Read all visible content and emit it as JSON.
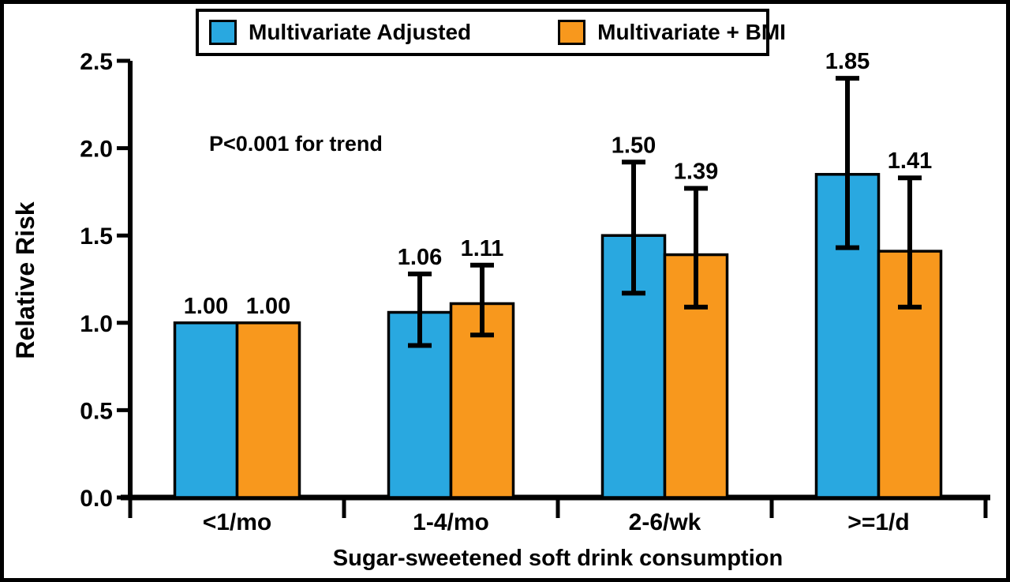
{
  "figure": {
    "background": "#ffffff",
    "border_color": "#000000",
    "text_color": "#000000"
  },
  "legend": {
    "items": [
      {
        "label": "Multivariate Adjusted",
        "color": "#29A8E0",
        "swatch_icon": "blue-square-swatch"
      },
      {
        "label": "Multivariate + BMI",
        "color": "#F8981D",
        "swatch_icon": "orange-square-swatch"
      }
    ]
  },
  "chart_data": {
    "type": "bar",
    "title": "",
    "xlabel": "Sugar-sweetened soft drink consumption",
    "ylabel": "Relative Risk",
    "annotation": "P<0.001 for trend",
    "ylim": [
      0.0,
      2.5
    ],
    "yticks": [
      "0.0",
      "0.5",
      "1.0",
      "1.5",
      "2.0",
      "2.5"
    ],
    "grid": false,
    "legend_position": "top",
    "error_bars": true,
    "categories": [
      "<1/mo",
      "1-4/mo",
      "2-6/wk",
      ">=1/d"
    ],
    "series": [
      {
        "name": "Multivariate Adjusted",
        "color": "#29A8E0",
        "values": [
          1.0,
          1.06,
          1.5,
          1.85
        ],
        "labels": [
          "1.00",
          "1.06",
          "1.50",
          "1.85"
        ],
        "ci_low": [
          null,
          0.87,
          1.17,
          1.43
        ],
        "ci_high": [
          null,
          1.28,
          1.92,
          2.4
        ]
      },
      {
        "name": "Multivariate + BMI",
        "color": "#F8981D",
        "values": [
          1.0,
          1.11,
          1.39,
          1.41
        ],
        "labels": [
          "1.00",
          "1.11",
          "1.39",
          "1.41"
        ],
        "ci_low": [
          null,
          0.93,
          1.09,
          1.09
        ],
        "ci_high": [
          null,
          1.33,
          1.77,
          1.83
        ]
      }
    ]
  }
}
